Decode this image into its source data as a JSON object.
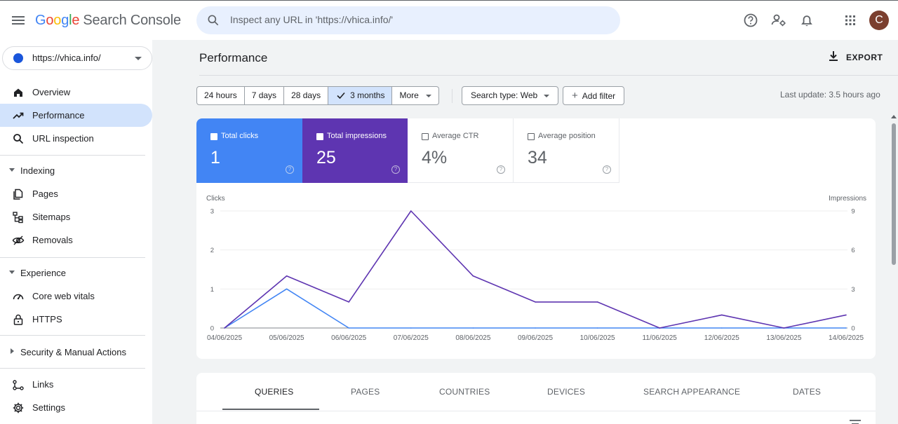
{
  "app": {
    "logo_letters": [
      "G",
      "o",
      "o",
      "g",
      "l",
      "e"
    ],
    "logo_suffix": "Search Console"
  },
  "search": {
    "placeholder": "Inspect any URL in 'https://vhica.info/'"
  },
  "top_icons": [
    "help-icon",
    "admin-icon",
    "notifications-icon",
    "apps-icon"
  ],
  "avatar_letter": "C",
  "property": {
    "url": "https://vhica.info/"
  },
  "sidebar": {
    "items": [
      {
        "label": "Overview",
        "icon": "home-icon"
      },
      {
        "label": "Performance",
        "icon": "trending-up-icon",
        "active": true
      },
      {
        "label": "URL inspection",
        "icon": "search-icon"
      }
    ],
    "indexing": {
      "label": "Indexing",
      "items": [
        {
          "label": "Pages",
          "icon": "pages-icon"
        },
        {
          "label": "Sitemaps",
          "icon": "sitemap-icon"
        },
        {
          "label": "Removals",
          "icon": "eye-off-icon"
        }
      ]
    },
    "experience": {
      "label": "Experience",
      "items": [
        {
          "label": "Core web vitals",
          "icon": "speed-icon"
        },
        {
          "label": "HTTPS",
          "icon": "lock-icon"
        }
      ]
    },
    "security": {
      "label": "Security & Manual Actions"
    },
    "bottom": [
      {
        "label": "Links",
        "icon": "links-icon"
      },
      {
        "label": "Settings",
        "icon": "gear-icon"
      }
    ]
  },
  "main": {
    "title": "Performance",
    "export_label": "EXPORT",
    "ranges": [
      "24 hours",
      "7 days",
      "28 days",
      "3 months",
      "More"
    ],
    "selected_range": "3 months",
    "search_type": "Search type: Web",
    "add_filter": "Add filter",
    "last_update": "Last update: 3.5 hours ago"
  },
  "metrics": [
    {
      "label": "Total clicks",
      "value": "1",
      "checked": true
    },
    {
      "label": "Total impressions",
      "value": "25",
      "checked": true
    },
    {
      "label": "Average CTR",
      "value": "4%",
      "checked": false
    },
    {
      "label": "Average position",
      "value": "34",
      "checked": false
    }
  ],
  "chart_data": {
    "type": "line",
    "x": [
      "04/06/2025",
      "05/06/2025",
      "06/06/2025",
      "07/06/2025",
      "08/06/2025",
      "09/06/2025",
      "10/06/2025",
      "11/06/2025",
      "12/06/2025",
      "13/06/2025",
      "14/06/2025"
    ],
    "series": [
      {
        "name": "Clicks",
        "axis": "left",
        "color": "#4285f4",
        "values": [
          0,
          1,
          0,
          0,
          0,
          0,
          0,
          0,
          0,
          0,
          0
        ]
      },
      {
        "name": "Impressions",
        "axis": "right",
        "color": "#5e35b1",
        "values": [
          0,
          4,
          2,
          9,
          4,
          2,
          2,
          0,
          1,
          0,
          1
        ]
      }
    ],
    "ylabel_left": "Clicks",
    "ylabel_right": "Impressions",
    "ylim_left": [
      0,
      3
    ],
    "ylim_right": [
      0,
      9
    ],
    "yticks_left": [
      "0",
      "1",
      "2",
      "3"
    ],
    "yticks_right": [
      "0",
      "3",
      "6",
      "9"
    ],
    "grid": true
  },
  "tabs": [
    "QUERIES",
    "PAGES",
    "COUNTRIES",
    "DEVICES",
    "SEARCH APPEARANCE",
    "DATES"
  ],
  "active_tab": "QUERIES",
  "colors": {
    "clicks": "#4285f4",
    "impressions": "#5e35b1",
    "active_nav": "#d2e3fc"
  }
}
